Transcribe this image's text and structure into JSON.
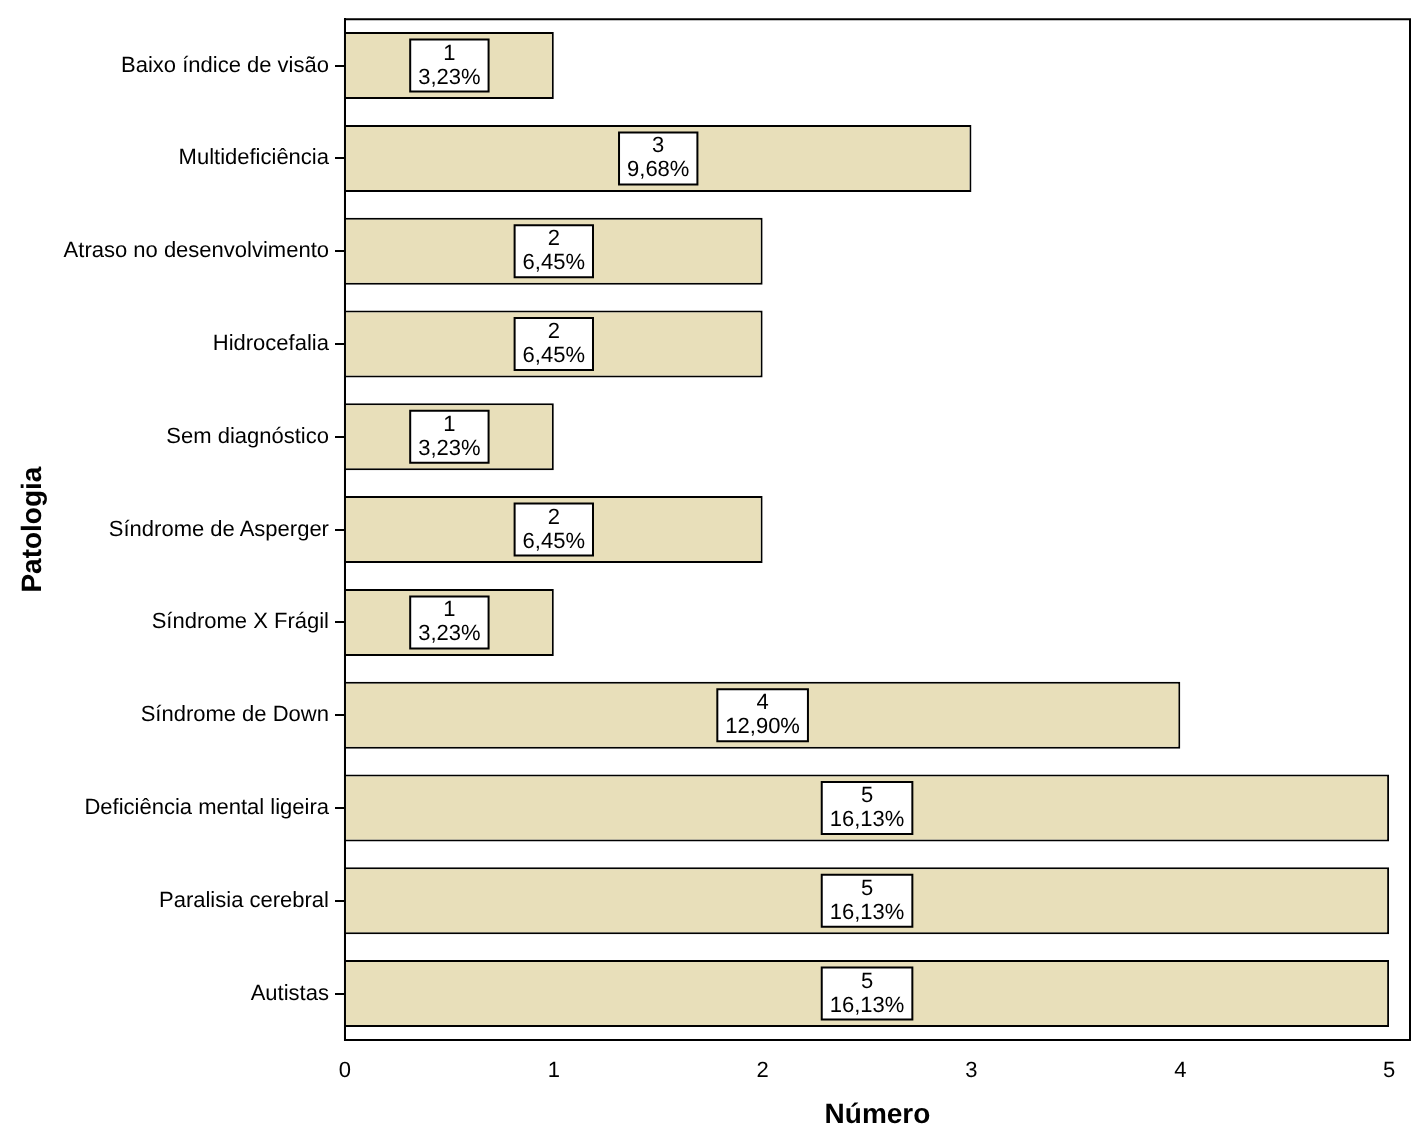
{
  "chart_data": {
    "type": "bar",
    "orientation": "horizontal",
    "xlabel": "Número",
    "ylabel": "Patologia",
    "categories": [
      "Baixo índice de visão",
      "Multideficiência",
      "Atraso no desenvolvimento",
      "Hidrocefalia",
      "Sem diagnóstico",
      "Síndrome de Asperger",
      "Síndrome X Frágil",
      "Síndrome de Down",
      "Deficiência mental ligeira",
      "Paralisia cerebral",
      "Autistas"
    ],
    "values": [
      1,
      3,
      2,
      2,
      1,
      2,
      1,
      4,
      5,
      5,
      5
    ],
    "value_labels": [
      "1\n3,23%",
      "3\n9,68%",
      "2\n6,45%",
      "2\n6,45%",
      "1\n3,23%",
      "2\n6,45%",
      "1\n3,23%",
      "4\n12,90%",
      "5\n16,13%",
      "5\n16,13%",
      "5\n16,13%"
    ],
    "color": "#e8dfba",
    "xlim": [
      0,
      5.1
    ],
    "xticks": [
      0,
      1,
      2,
      3,
      4,
      5
    ],
    "grid": false,
    "legend": false
  }
}
